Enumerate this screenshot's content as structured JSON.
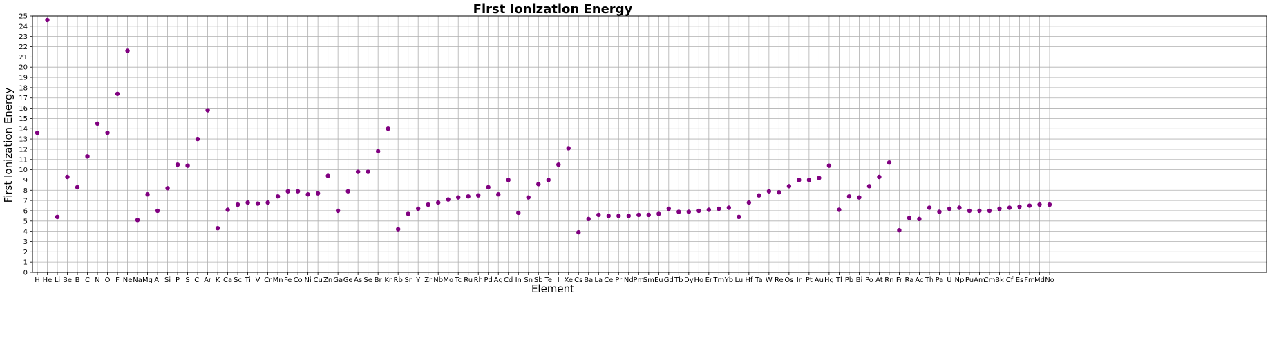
{
  "chart_data": {
    "type": "scatter",
    "title": "First Ionization Energy",
    "xlabel": "Element",
    "ylabel": "First Ionization Energy",
    "ylim": [
      0,
      25
    ],
    "yticks": [
      0,
      1,
      2,
      3,
      4,
      5,
      6,
      7,
      8,
      9,
      10,
      11,
      12,
      13,
      14,
      15,
      16,
      17,
      18,
      19,
      20,
      21,
      22,
      23,
      24,
      25
    ],
    "grid": true,
    "marker_color": "#800080",
    "categories": [
      "H",
      "He",
      "Li",
      "Be",
      "B",
      "C",
      "N",
      "O",
      "F",
      "Ne",
      "Na",
      "Mg",
      "Al",
      "Si",
      "P",
      "S",
      "Cl",
      "Ar",
      "K",
      "Ca",
      "Sc",
      "Ti",
      "V",
      "Cr",
      "Mn",
      "Fe",
      "Co",
      "Ni",
      "Cu",
      "Zn",
      "Ga",
      "Ge",
      "As",
      "Se",
      "Br",
      "Kr",
      "Rb",
      "Sr",
      "Y",
      "Zr",
      "Nb",
      "Mo",
      "Tc",
      "Ru",
      "Rh",
      "Pd",
      "Ag",
      "Cd",
      "In",
      "Sn",
      "Sb",
      "Te",
      "I",
      "Xe",
      "Cs",
      "Ba",
      "La",
      "Ce",
      "Pr",
      "Nd",
      "Pm",
      "Sm",
      "Eu",
      "Gd",
      "Tb",
      "Dy",
      "Ho",
      "Er",
      "Tm",
      "Yb",
      "Lu",
      "Hf",
      "Ta",
      "W",
      "Re",
      "Os",
      "Ir",
      "Pt",
      "Au",
      "Hg",
      "Tl",
      "Pb",
      "Bi",
      "Po",
      "At",
      "Rn",
      "Fr",
      "Ra",
      "Ac",
      "Th",
      "Pa",
      "U",
      "Np",
      "Pu",
      "Am",
      "Cm",
      "Bk",
      "Cf",
      "Es",
      "Fm",
      "Md",
      "No"
    ],
    "values": [
      13.6,
      24.6,
      5.4,
      9.3,
      8.3,
      11.3,
      14.5,
      13.6,
      17.4,
      21.6,
      5.1,
      7.6,
      6.0,
      8.2,
      10.5,
      10.4,
      13.0,
      15.8,
      4.3,
      6.1,
      6.6,
      6.8,
      6.7,
      6.8,
      7.4,
      7.9,
      7.9,
      7.6,
      7.7,
      9.4,
      6.0,
      7.9,
      9.8,
      9.8,
      11.8,
      14.0,
      4.2,
      5.7,
      6.2,
      6.6,
      6.8,
      7.1,
      7.3,
      7.4,
      7.5,
      8.3,
      7.6,
      9.0,
      5.8,
      7.3,
      8.6,
      9.0,
      10.5,
      12.1,
      3.9,
      5.2,
      5.6,
      5.5,
      5.5,
      5.5,
      5.6,
      5.6,
      5.7,
      6.2,
      5.9,
      5.9,
      6.0,
      6.1,
      6.2,
      6.3,
      5.4,
      6.8,
      7.5,
      7.9,
      7.8,
      8.4,
      9.0,
      9.0,
      9.2,
      10.4,
      6.1,
      7.4,
      7.3,
      8.4,
      9.3,
      10.7,
      4.1,
      5.3,
      5.2,
      6.3,
      5.9,
      6.2,
      6.3,
      6.0,
      6.0,
      6.0,
      6.2,
      6.3,
      6.4,
      6.5,
      6.6,
      6.6
    ]
  }
}
